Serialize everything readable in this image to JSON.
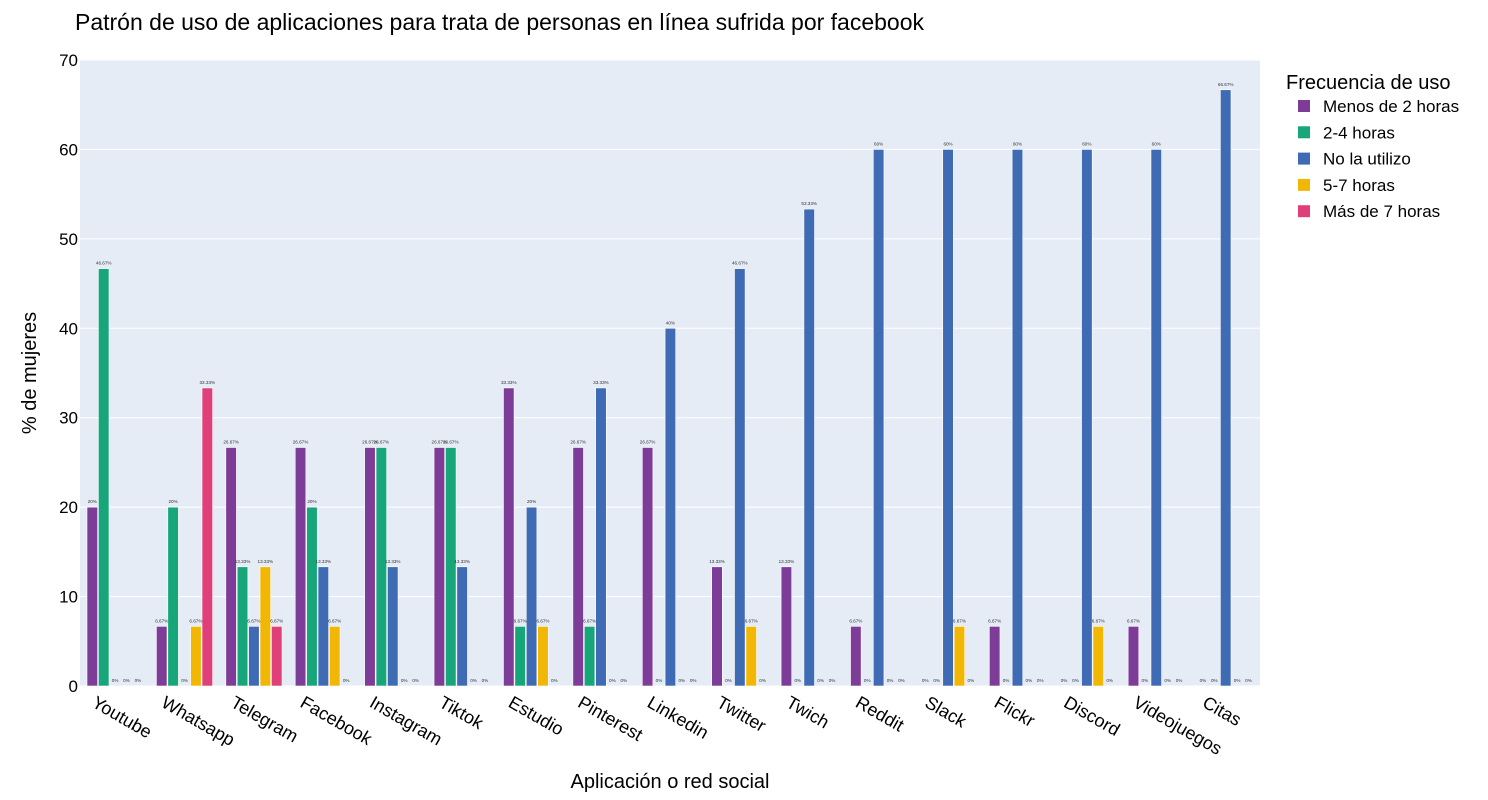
{
  "chart_data": {
    "type": "bar",
    "title": "Patrón de uso de aplicaciones para trata de personas en línea sufrida por facebook",
    "xlabel": "Aplicación o red social",
    "ylabel": "% de mujeres",
    "ylim": [
      0,
      70
    ],
    "yticks": [
      0,
      10,
      20,
      30,
      40,
      50,
      60,
      70
    ],
    "grid": true,
    "legend_title": "Frecuencia de uso",
    "legend_position": "right",
    "categories": [
      "Youtube",
      "Whatsapp",
      "Telegram",
      "Facebook",
      "Instagram",
      "Tiktok",
      "Estudio",
      "Pinterest",
      "Linkedin",
      "Twitter",
      "Twich",
      "Reddit",
      "Slack",
      "Flickr",
      "Discord",
      "Videojuegos",
      "Citas"
    ],
    "series": [
      {
        "name": "Menos de 2 horas",
        "color": "#7d3c98",
        "values": [
          20,
          6.67,
          26.67,
          26.67,
          26.67,
          26.67,
          33.33,
          26.67,
          26.67,
          13.33,
          13.33,
          6.67,
          0,
          6.67,
          0,
          6.67,
          0
        ],
        "labels": [
          "20%",
          "6.67%",
          "26.67%",
          "26.67%",
          "26.67%",
          "26.67%",
          "33.33%",
          "26.67%",
          "26.67%",
          "13.33%",
          "13.33%",
          "6.67%",
          "0%",
          "6.67%",
          "0%",
          "6.67%",
          "0%"
        ]
      },
      {
        "name": "2-4 horas",
        "color": "#17a57a",
        "values": [
          46.67,
          20,
          13.33,
          20,
          26.67,
          26.67,
          6.67,
          6.67,
          0,
          0,
          0,
          0,
          0,
          0,
          0,
          0,
          0
        ],
        "labels": [
          "46.67%",
          "20%",
          "13.33%",
          "20%",
          "26.67%",
          "26.67%",
          "6.67%",
          "6.67%",
          "0%",
          "0%",
          "0%",
          "0%",
          "0%",
          "0%",
          "0%",
          "0%",
          "0%"
        ]
      },
      {
        "name": "No la utilizo",
        "color": "#3e6bb3",
        "values": [
          0,
          0,
          6.67,
          13.33,
          13.33,
          13.33,
          20,
          33.33,
          40,
          46.67,
          53.33,
          60,
          60,
          60,
          60,
          60,
          66.67
        ],
        "labels": [
          "0%",
          "0%",
          "6.67%",
          "13.33%",
          "13.33%",
          "13.33%",
          "20%",
          "33.33%",
          "40%",
          "46.67%",
          "53.33%",
          "60%",
          "60%",
          "60%",
          "60%",
          "60%",
          "66.67%"
        ]
      },
      {
        "name": "5-7 horas",
        "color": "#f2b705",
        "values": [
          0,
          6.67,
          13.33,
          6.67,
          0,
          0,
          6.67,
          0,
          0,
          6.67,
          0,
          0,
          6.67,
          0,
          6.67,
          0,
          0
        ],
        "labels": [
          "0%",
          "6.67%",
          "13.33%",
          "6.67%",
          "0%",
          "0%",
          "6.67%",
          "0%",
          "0%",
          "6.67%",
          "0%",
          "0%",
          "6.67%",
          "0%",
          "6.67%",
          "0%",
          "0%"
        ]
      },
      {
        "name": "Más de 7 horas",
        "color": "#e0407a",
        "values": [
          0,
          33.33,
          6.67,
          0,
          0,
          0,
          0,
          0,
          0,
          0,
          0,
          0,
          0,
          0,
          0,
          0,
          0
        ],
        "labels": [
          "0%",
          "33.33%",
          "6.67%",
          "0%",
          "0%",
          "0%",
          "0%",
          "0%",
          "0%",
          "0%",
          "0%",
          "0%",
          "0%",
          "0%",
          "0%",
          "0%",
          "0%"
        ]
      }
    ]
  }
}
